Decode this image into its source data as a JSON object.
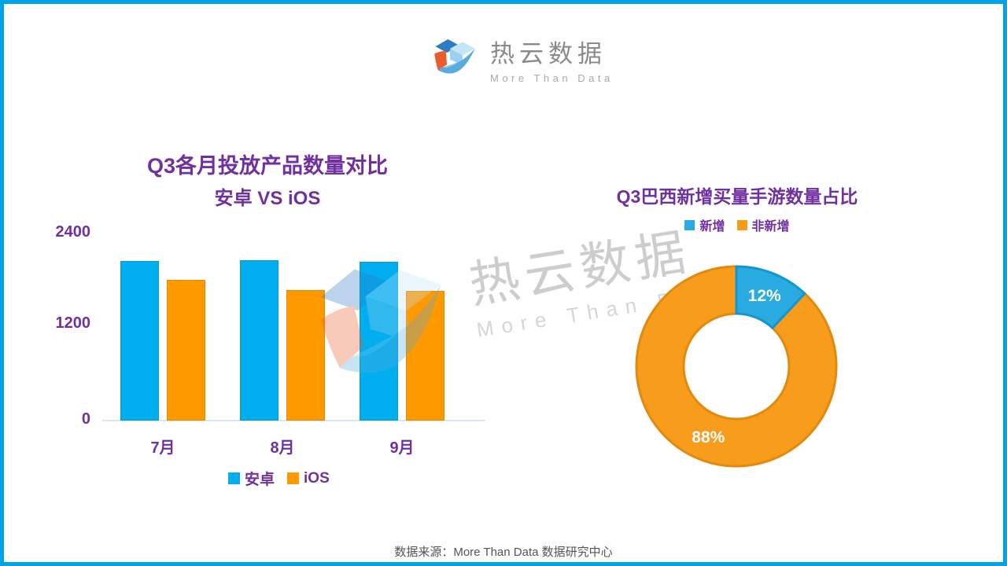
{
  "page": {
    "border_color": "#00A2E8",
    "background": "#FFFFFF"
  },
  "header_logo": {
    "brand_name": "热云数据",
    "tagline": "More Than Data"
  },
  "watermark": {
    "brand_name": "热云数据",
    "tagline": "More Than Data"
  },
  "footer": {
    "source_text": "数据来源：More Than Data 数据研究中心"
  },
  "colors": {
    "accent_purple": "#7030A0",
    "android_blue": "#00AEEF",
    "ios_orange": "#FF9900",
    "donut_blue": "#29ABE2",
    "donut_orange": "#F89C1C",
    "axis_line": "#DCE6F1",
    "page_border_cyan": "#00A2E8"
  },
  "chart_data": [
    {
      "type": "bar",
      "title_line1": "Q3各月投放产品数量对比",
      "title_line2": "安卓 VS iOS",
      "categories": [
        "7月",
        "8月",
        "9月"
      ],
      "series": [
        {
          "name": "安卓",
          "color": "#00AEEF",
          "stroke": "#0B97D6",
          "values": [
            2050,
            2060,
            2040
          ]
        },
        {
          "name": "iOS",
          "color": "#FF9900",
          "stroke": "#E68A00",
          "values": [
            1800,
            1670,
            1660
          ]
        }
      ],
      "ylim": [
        0,
        2400
      ],
      "yticks": [
        0,
        1200,
        2400
      ],
      "grid": false,
      "legend_position": "bottom"
    },
    {
      "type": "pie",
      "donut": true,
      "title": "Q3巴西新增买量手游数量占比",
      "slices": [
        {
          "name": "新增",
          "value": 12,
          "label": "12%",
          "color": "#29ABE2",
          "stroke": "#1495CE"
        },
        {
          "name": "非新增",
          "value": 88,
          "label": "88%",
          "color": "#F89C1C",
          "stroke": "#E18A0F"
        }
      ],
      "start_angle_deg": 0,
      "direction": "clockwise",
      "legend_position": "top"
    }
  ]
}
